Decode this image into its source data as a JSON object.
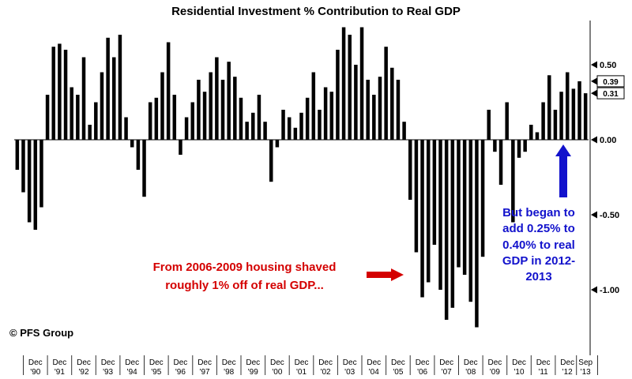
{
  "watermark": "© PFS Group",
  "annotations": {
    "red": {
      "text": "From 2006-2009 housing shaved\nroughly 1% off of real GDP...",
      "color": "#d40000",
      "arrow": "right"
    },
    "blue": {
      "text": "But began to\nadd 0.25% to\n0.40% to real\nGDP in 2012-\n2013",
      "color": "#1212cc",
      "arrow": "up"
    }
  },
  "chart_data": {
    "type": "bar",
    "title": "Residential Investment % Contribution to Real GDP",
    "bar_color": "#000000",
    "x_start": "1990Q1",
    "x_frequency": "quarterly",
    "values": [
      -0.2,
      -0.35,
      -0.55,
      -0.6,
      -0.45,
      0.3,
      0.62,
      0.64,
      0.6,
      0.35,
      0.3,
      0.55,
      0.1,
      0.25,
      0.45,
      0.68,
      0.55,
      0.7,
      0.15,
      -0.05,
      -0.2,
      -0.38,
      0.25,
      0.28,
      0.45,
      0.65,
      0.3,
      -0.1,
      0.15,
      0.25,
      0.4,
      0.32,
      0.45,
      0.55,
      0.4,
      0.52,
      0.42,
      0.28,
      0.12,
      0.18,
      0.3,
      0.12,
      -0.28,
      -0.05,
      0.2,
      0.15,
      0.08,
      0.18,
      0.28,
      0.45,
      0.2,
      0.35,
      0.32,
      0.6,
      0.75,
      0.7,
      0.5,
      0.75,
      0.4,
      0.3,
      0.42,
      0.62,
      0.48,
      0.4,
      0.12,
      -0.4,
      -0.75,
      -1.05,
      -0.95,
      -0.7,
      -1.0,
      -1.2,
      -1.12,
      -0.85,
      -0.9,
      -1.08,
      -1.25,
      -0.78,
      0.2,
      -0.08,
      -0.3,
      0.25,
      -0.55,
      -0.12,
      -0.08,
      0.1,
      0.05,
      0.25,
      0.43,
      0.2,
      0.32,
      0.45,
      0.34,
      0.39,
      0.31
    ],
    "x_tick_labels": [
      "Dec '90",
      "Dec '91",
      "Dec '92",
      "Dec '93",
      "Dec '94",
      "Dec '95",
      "Dec '96",
      "Dec '97",
      "Dec '98",
      "Dec '99",
      "Dec '00",
      "Dec '01",
      "Dec '02",
      "Dec '03",
      "Dec '04",
      "Dec '05",
      "Dec '06",
      "Dec '07",
      "Dec '08",
      "Dec '09",
      "Dec '10",
      "Dec '11",
      "Dec '12",
      "Sep '13"
    ],
    "y_ticks": [
      {
        "value": 0.5,
        "label": "0.50"
      },
      {
        "value": 0.0,
        "label": "0.00"
      },
      {
        "value": -0.5,
        "label": "-0.50"
      },
      {
        "value": -1.0,
        "label": "-1.00"
      }
    ],
    "last_value_markers": [
      {
        "value": 0.39,
        "label": "0.39"
      },
      {
        "value": 0.31,
        "label": "0.31"
      }
    ],
    "ylim": [
      -1.4,
      0.85
    ],
    "grid": false,
    "legend_position": "none",
    "axis_side": "right"
  }
}
